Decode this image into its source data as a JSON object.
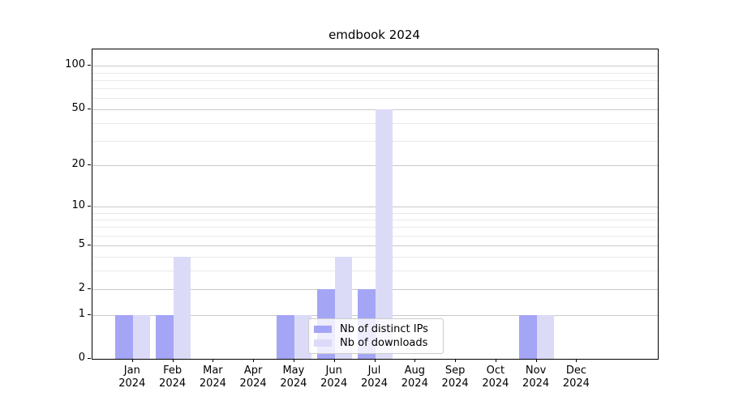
{
  "title": "emdbook 2024",
  "chart_data": {
    "type": "bar",
    "title": "emdbook 2024",
    "categories": [
      "Jan 2024",
      "Feb 2024",
      "Mar 2024",
      "Apr 2024",
      "May 2024",
      "Jun 2024",
      "Jul 2024",
      "Aug 2024",
      "Sep 2024",
      "Oct 2024",
      "Nov 2024",
      "Dec 2024"
    ],
    "months": [
      "Jan",
      "Feb",
      "Mar",
      "Apr",
      "May",
      "Jun",
      "Jul",
      "Aug",
      "Sep",
      "Oct",
      "Nov",
      "Dec"
    ],
    "year": "2024",
    "series": [
      {
        "name": "Nb of distinct IPs",
        "color": "#a5a5f6",
        "values": [
          1,
          1,
          0,
          0,
          1,
          2,
          2,
          0,
          0,
          0,
          1,
          0
        ]
      },
      {
        "name": "Nb of downloads",
        "color": "#dbdbf8",
        "values": [
          1,
          4,
          0,
          0,
          1,
          4,
          50,
          0,
          0,
          0,
          1,
          0
        ]
      }
    ],
    "xlabel": "",
    "ylabel": "",
    "yscale": "log1p",
    "ylim": [
      0,
      130
    ],
    "y_major_ticks": [
      0,
      1,
      2,
      5,
      10,
      20,
      50,
      100
    ],
    "y_minor_ticks": [
      3,
      4,
      6,
      7,
      8,
      9,
      30,
      40,
      60,
      70,
      80,
      90
    ],
    "grid": true,
    "legend_position": "lower-center-inside"
  }
}
